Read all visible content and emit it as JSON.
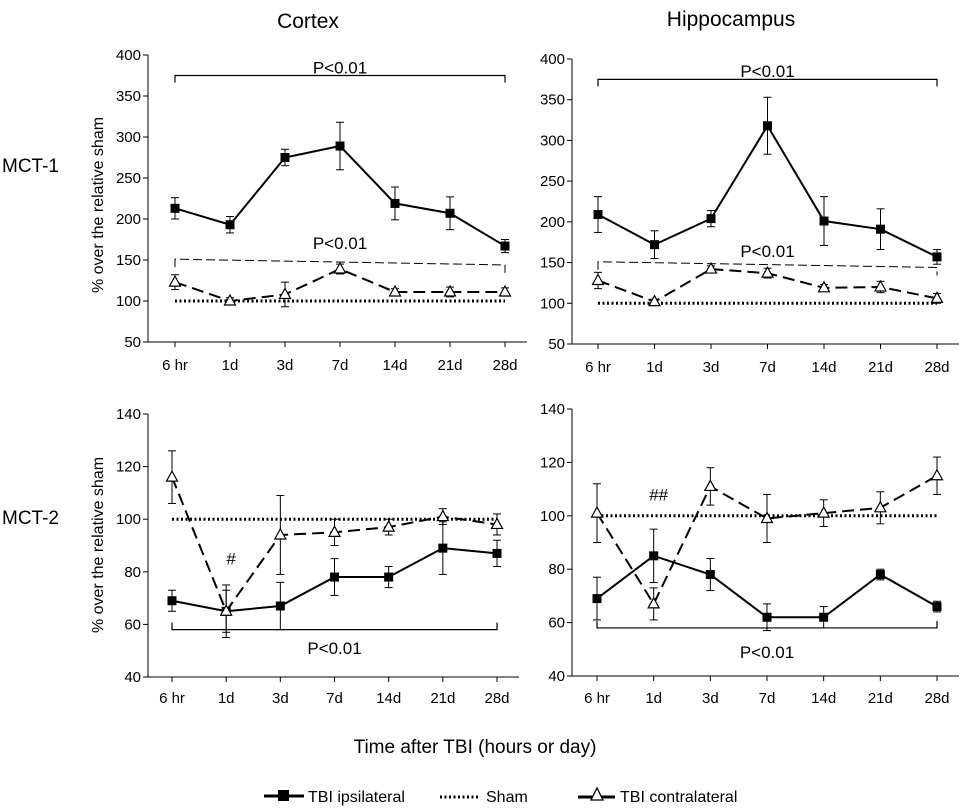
{
  "figure": {
    "column_titles": [
      "Cortex",
      "Hippocampus"
    ],
    "row_labels": [
      "MCT-1",
      "MCT-2"
    ],
    "ylabel": "% over the relative sham",
    "xlabel": "Time after TBI (hours or day)",
    "legend": [
      {
        "label": "TBI ipsilateral",
        "style": "solid-square"
      },
      {
        "label": "Sham",
        "style": "dotted"
      },
      {
        "label": "TBI contralateral",
        "style": "dashed-triangle"
      }
    ]
  },
  "chart_data": [
    {
      "id": "mct1-cortex",
      "type": "line",
      "title": "Cortex",
      "row": "MCT-1",
      "categories": [
        "6 hr",
        "1d",
        "3d",
        "7d",
        "14d",
        "21d",
        "28d"
      ],
      "ylim": [
        50,
        400
      ],
      "yticks": [
        50,
        100,
        150,
        200,
        250,
        300,
        350,
        400
      ],
      "series": [
        {
          "name": "TBI ipsilateral",
          "values": [
            213,
            193,
            275,
            289,
            219,
            207,
            167
          ],
          "errors": [
            13,
            10,
            10,
            29,
            20,
            20,
            8
          ]
        },
        {
          "name": "TBI contralateral",
          "values": [
            123,
            100,
            108,
            139,
            111,
            111,
            111
          ],
          "errors": [
            9,
            4,
            15,
            6,
            4,
            6,
            5
          ]
        },
        {
          "name": "Sham",
          "values": [
            100,
            100,
            100,
            100,
            100,
            100,
            100
          ]
        }
      ],
      "annotations": [
        {
          "text": "P<0.01",
          "bracket": "solid",
          "y": 375,
          "label_y": 385,
          "from": 0,
          "to": 6
        },
        {
          "text": "P<0.01",
          "bracket": "dashed",
          "y": [
            151,
            144
          ],
          "label_y": 171,
          "from": 0,
          "to": 6
        }
      ]
    },
    {
      "id": "mct1-hippocampus",
      "type": "line",
      "title": "Hippocampus",
      "row": "MCT-1",
      "categories": [
        "6 hr",
        "1d",
        "3d",
        "7d",
        "14d",
        "21d",
        "28d"
      ],
      "ylim": [
        50,
        400
      ],
      "yticks": [
        50,
        100,
        150,
        200,
        250,
        300,
        350,
        400
      ],
      "series": [
        {
          "name": "TBI ipsilateral",
          "values": [
            209,
            172,
            204,
            318,
            201,
            191,
            157
          ],
          "errors": [
            22,
            17,
            10,
            35,
            30,
            25,
            9
          ]
        },
        {
          "name": "TBI contralateral",
          "values": [
            128,
            102,
            142,
            137,
            119,
            120,
            106
          ],
          "errors": [
            10,
            3,
            4,
            6,
            4,
            7,
            6
          ]
        },
        {
          "name": "Sham",
          "values": [
            100,
            100,
            100,
            100,
            100,
            100,
            100
          ]
        }
      ],
      "annotations": [
        {
          "text": "P<0.01",
          "bracket": "solid",
          "y": 375,
          "label_y": 385,
          "from": 0,
          "to": 6
        },
        {
          "text": "P<0.01",
          "bracket": "dashed",
          "y": [
            151,
            144
          ],
          "label_y": 164,
          "from": 0,
          "to": 6
        }
      ]
    },
    {
      "id": "mct2-cortex",
      "type": "line",
      "title": "Cortex",
      "row": "MCT-2",
      "categories": [
        "6 hr",
        "1d",
        "3d",
        "7d",
        "14d",
        "21d",
        "28d"
      ],
      "ylim": [
        40,
        140
      ],
      "yticks": [
        40,
        60,
        80,
        100,
        120,
        140
      ],
      "series": [
        {
          "name": "TBI ipsilateral",
          "values": [
            69,
            65,
            67,
            78,
            78,
            89,
            87
          ],
          "errors": [
            4,
            8,
            9,
            7,
            4,
            10,
            5
          ]
        },
        {
          "name": "TBI contralateral",
          "values": [
            116,
            65,
            94,
            95,
            97,
            101,
            98
          ],
          "errors": [
            10,
            10,
            15,
            5,
            3,
            3,
            4
          ]
        },
        {
          "name": "Sham",
          "values": [
            100,
            100,
            100,
            100,
            100,
            100,
            100
          ]
        }
      ],
      "annotations": [
        {
          "text": "P<0.01",
          "bracket": "solid-up",
          "y": 58,
          "label_y": 51,
          "from": 0,
          "to": 6
        },
        {
          "text": "#",
          "x": 1,
          "y": 85
        }
      ]
    },
    {
      "id": "mct2-hippocampus",
      "type": "line",
      "title": "Hippocampus",
      "row": "MCT-2",
      "categories": [
        "6 hr",
        "1d",
        "3d",
        "7d",
        "14d",
        "21d",
        "28d"
      ],
      "ylim": [
        40,
        140
      ],
      "yticks": [
        40,
        60,
        80,
        100,
        120,
        140
      ],
      "series": [
        {
          "name": "TBI ipsilateral",
          "values": [
            69,
            85,
            78,
            62,
            62,
            78,
            66
          ],
          "errors": [
            8,
            10,
            6,
            5,
            4,
            2,
            2
          ]
        },
        {
          "name": "TBI contralateral",
          "values": [
            101,
            67,
            111,
            99,
            101,
            103,
            115
          ],
          "errors": [
            11,
            6,
            7,
            9,
            5,
            6,
            7
          ]
        },
        {
          "name": "Sham",
          "values": [
            100,
            100,
            100,
            100,
            100,
            100,
            100
          ]
        }
      ],
      "annotations": [
        {
          "text": "P<0.01",
          "bracket": "solid-up",
          "y": 58,
          "label_y": 49,
          "from": 0,
          "to": 6
        },
        {
          "text": "##",
          "x": 1,
          "y": 108
        }
      ]
    }
  ]
}
